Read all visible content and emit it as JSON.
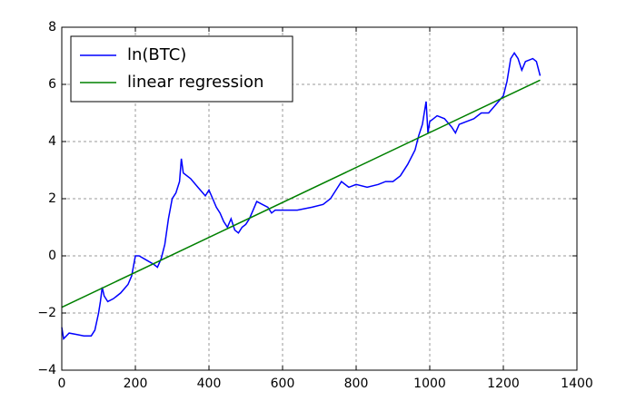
{
  "chart_data": {
    "type": "line",
    "xlim": [
      0,
      1400
    ],
    "ylim": [
      -4,
      8
    ],
    "xticks": [
      0,
      200,
      400,
      600,
      800,
      1000,
      1200,
      1400
    ],
    "yticks": [
      {
        "value": -4,
        "label": "−4"
      },
      {
        "value": -2,
        "label": "−2"
      },
      0,
      2,
      4,
      6,
      8
    ],
    "grid": true,
    "legend": "upper left",
    "series": [
      {
        "name": "ln(BTC)",
        "color": "#0000ff",
        "x": [
          0,
          5,
          20,
          40,
          60,
          80,
          90,
          100,
          105,
          110,
          115,
          125,
          140,
          160,
          180,
          190,
          200,
          210,
          230,
          250,
          260,
          270,
          280,
          290,
          300,
          310,
          320,
          325,
          330,
          350,
          370,
          390,
          400,
          410,
          420,
          430,
          440,
          450,
          460,
          470,
          480,
          490,
          500,
          510,
          520,
          530,
          545,
          560,
          570,
          580,
          600,
          640,
          680,
          710,
          730,
          750,
          760,
          780,
          800,
          830,
          860,
          880,
          900,
          920,
          940,
          960,
          970,
          980,
          990,
          995,
          1000,
          1010,
          1020,
          1040,
          1060,
          1070,
          1080,
          1100,
          1120,
          1140,
          1160,
          1180,
          1200,
          1210,
          1220,
          1230,
          1240,
          1250,
          1260,
          1280,
          1290,
          1300
        ],
        "values": [
          -2.5,
          -2.9,
          -2.7,
          -2.75,
          -2.8,
          -2.8,
          -2.6,
          -2.0,
          -1.6,
          -1.1,
          -1.4,
          -1.6,
          -1.5,
          -1.3,
          -1.0,
          -0.7,
          0.0,
          0.0,
          -0.15,
          -0.3,
          -0.4,
          -0.1,
          0.4,
          1.3,
          2.0,
          2.2,
          2.6,
          3.4,
          2.9,
          2.7,
          2.4,
          2.1,
          2.3,
          2.0,
          1.7,
          1.5,
          1.2,
          1.0,
          1.3,
          0.9,
          0.8,
          1.0,
          1.1,
          1.3,
          1.6,
          1.9,
          1.8,
          1.7,
          1.5,
          1.6,
          1.6,
          1.6,
          1.7,
          1.8,
          2.0,
          2.4,
          2.6,
          2.4,
          2.5,
          2.4,
          2.5,
          2.6,
          2.6,
          2.8,
          3.2,
          3.7,
          4.2,
          4.6,
          5.4,
          4.3,
          4.7,
          4.8,
          4.9,
          4.8,
          4.5,
          4.3,
          4.6,
          4.7,
          4.8,
          5.0,
          5.0,
          5.3,
          5.6,
          6.1,
          6.9,
          7.1,
          6.9,
          6.5,
          6.8,
          6.9,
          6.8,
          6.3
        ]
      },
      {
        "name": "linear regression",
        "color": "#008000",
        "x": [
          0,
          1300
        ],
        "values": [
          -1.8,
          6.15
        ]
      }
    ]
  }
}
